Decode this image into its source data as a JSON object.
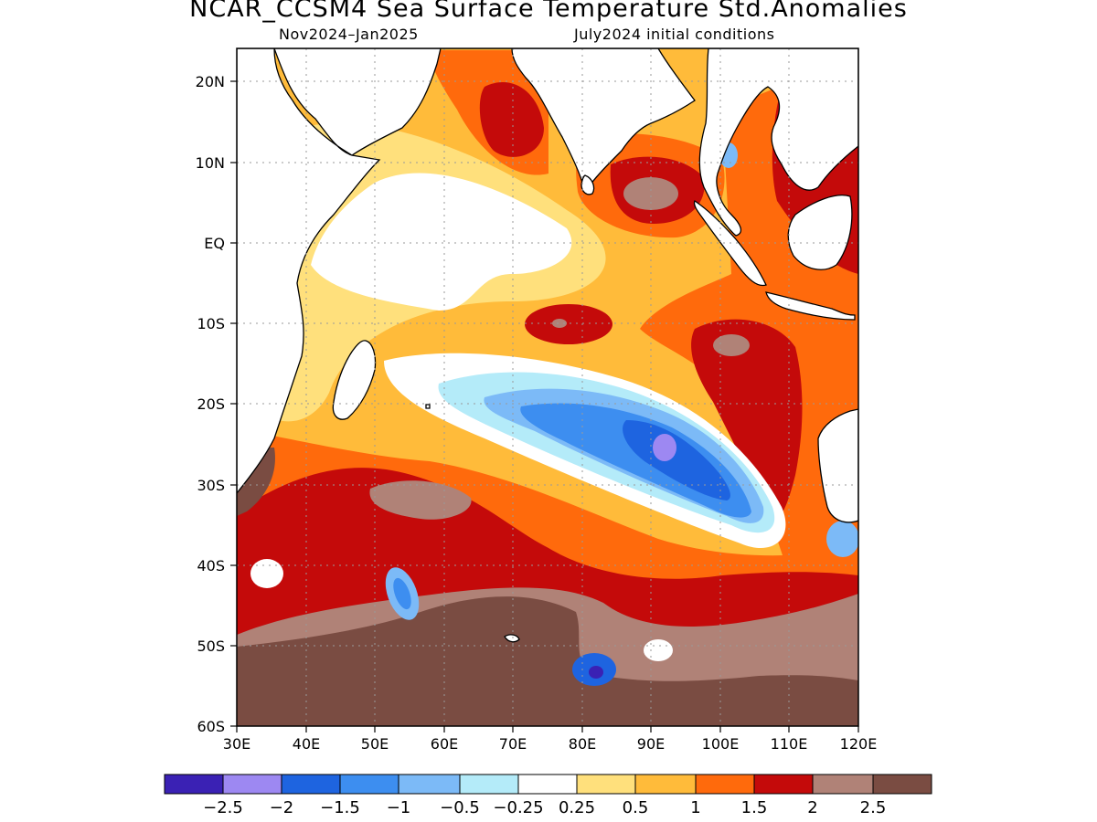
{
  "title": "NCAR_CCSM4 Sea Surface Temperature Std.Anomalies",
  "subtitle_left": "Nov2024–Jan2025",
  "subtitle_right": "July2024 initial conditions",
  "map": {
    "lat_labels": [
      "20N",
      "10N",
      "EQ",
      "10S",
      "20S",
      "30S",
      "40S",
      "50S",
      "60S"
    ],
    "lon_labels": [
      "30E",
      "40E",
      "50E",
      "60E",
      "70E",
      "80E",
      "90E",
      "100E",
      "110E",
      "120E"
    ],
    "lat_range": [
      -60,
      24
    ],
    "lon_range": [
      30,
      120
    ]
  },
  "colorbar": {
    "colors": [
      "#3a21b4",
      "#9d88f2",
      "#1e64e0",
      "#3d8ef0",
      "#7cbaf7",
      "#b4ebf9",
      "#ffffff",
      "#ffe07c",
      "#ffbb3a",
      "#ff6a0c",
      "#c40a0a",
      "#b08277",
      "#7a4c42"
    ],
    "labels": [
      "−2.5",
      "−2",
      "−1.5",
      "−1",
      "−0.5",
      "−0.25",
      "0.25",
      "0.5",
      "1",
      "1.5",
      "2",
      "2.5"
    ]
  }
}
